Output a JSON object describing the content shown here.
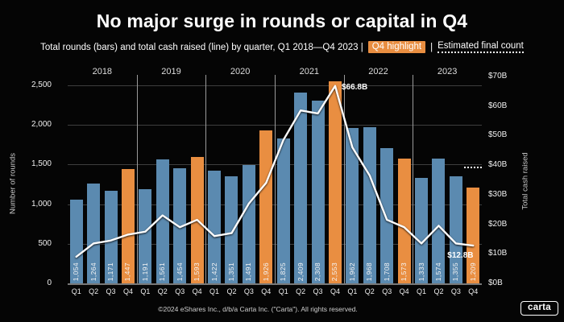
{
  "header": {
    "title": "No major surge in rounds or capital in Q4",
    "subtitle_prefix": "Total rounds (bars) and total cash raised (line) by quarter, Q1 2018—Q4 2023 |",
    "subtitle_chip": "Q4 highlight",
    "pipe": "|",
    "subtitle_estimated": "Estimated final count"
  },
  "footer": {
    "copyright": "©2024 eShares Inc., d/b/a Carta Inc. (\"Carta\"). All rights reserved.",
    "logo_text": "carta"
  },
  "chart_data": {
    "type": "bar",
    "combo": "bar+line dual axis",
    "years": [
      "2018",
      "2019",
      "2020",
      "2021",
      "2022",
      "2023"
    ],
    "x_tick_pattern": [
      "Q1",
      "Q2",
      "Q3",
      "Q4"
    ],
    "series": [
      {
        "name": "Total rounds",
        "type": "bar",
        "axis": "left",
        "values": [
          1054,
          1264,
          1171,
          1447,
          1191,
          1561,
          1454,
          1593,
          1422,
          1351,
          1491,
          1926,
          1825,
          2409,
          2308,
          2553,
          1962,
          1968,
          1708,
          1573,
          1333,
          1574,
          1355,
          1209
        ],
        "labels": [
          "1,054",
          "1,264",
          "1,171",
          "1,447",
          "1,191",
          "1,561",
          "1,454",
          "1,593",
          "1,422",
          "1,351",
          "1,491",
          "1,926",
          "1,825",
          "2,409",
          "2,308",
          "2,553",
          "1,962",
          "1,968",
          "1,708",
          "1,573",
          "1,333",
          "1,574",
          "1,355",
          "1,209"
        ]
      },
      {
        "name": "Total cash raised",
        "type": "line",
        "axis": "right",
        "values_billions_usd": [
          9,
          13.5,
          14.5,
          16.5,
          17.5,
          23,
          19,
          21.5,
          16,
          17,
          27,
          34,
          48.5,
          58.5,
          57.5,
          66.8,
          46,
          36.5,
          21.5,
          19,
          13.5,
          19.5,
          13.5,
          12.8
        ]
      }
    ],
    "q4_highlight_indices": [
      3,
      7,
      11,
      15,
      19,
      23
    ],
    "left_axis": {
      "label": "Number of rounds",
      "ticks": [
        0,
        500,
        1000,
        1500,
        2000,
        2500
      ],
      "tick_labels": [
        "0",
        "500",
        "1,000",
        "1,500",
        "2,000",
        "2,500"
      ],
      "range": [
        0,
        2500
      ],
      "grid": true
    },
    "right_axis": {
      "label": "Total cash raised",
      "ticks": [
        0,
        10,
        20,
        30,
        40,
        50,
        60,
        70
      ],
      "tick_labels": [
        "$0B",
        "$10B",
        "$20B",
        "$30B",
        "$40B",
        "$50B",
        "$60B",
        "$70B"
      ],
      "range": [
        0,
        70
      ],
      "grid": false
    },
    "annotations": {
      "peak": {
        "text": "$66.8B",
        "index": 15,
        "value_billions_usd": 66.8
      },
      "last": {
        "text": "$12.8B",
        "index": 23,
        "value_billions_usd": 12.8
      }
    },
    "estimated_final_count_marker": {
      "index": 23,
      "rounds": 1475
    },
    "legend_position": "none",
    "colors": {
      "bar_blue": "#5b8ab0",
      "bar_orange": "#e98e41",
      "line": "#ffffff",
      "grid": "#3e3e3e",
      "separator": "#9a9a9a",
      "axis_line": "#787878",
      "background": "#050505",
      "highlight_chip": "#e98e41"
    }
  }
}
